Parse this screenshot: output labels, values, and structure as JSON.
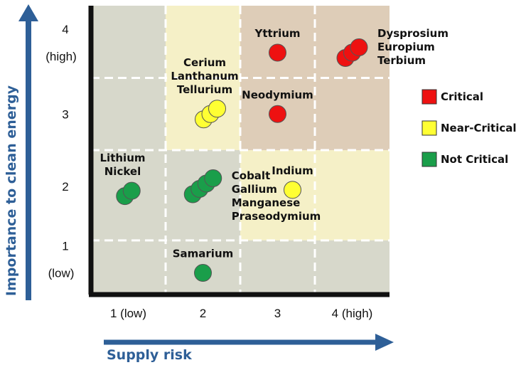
{
  "chart_data": {
    "type": "scatter",
    "xlabel": "Supply risk",
    "ylabel": "Importance to clean energy",
    "xlim": [
      0.5,
      4.5
    ],
    "ylim": [
      0.5,
      4.5
    ],
    "x_ticks": [
      {
        "value": 1,
        "label": "1 (low)"
      },
      {
        "value": 2,
        "label": "2"
      },
      {
        "value": 3,
        "label": "3"
      },
      {
        "value": 4,
        "label": "4 (high)"
      }
    ],
    "y_ticks": [
      {
        "value": 4,
        "lines": [
          "4",
          "(high)"
        ]
      },
      {
        "value": 3,
        "lines": [
          "3"
        ]
      },
      {
        "value": 2,
        "lines": [
          "2"
        ]
      },
      {
        "value": 1,
        "lines": [
          "1",
          "(low)"
        ]
      }
    ],
    "grid": true,
    "legend_position": "right",
    "categories": [
      {
        "name": "Critical",
        "color": "#ee1111"
      },
      {
        "name": "Near-Critical",
        "color": "#ffff33"
      },
      {
        "name": "Not Critical",
        "color": "#1a9e4a"
      }
    ],
    "zone_colors": {
      "gray": "#d7d8cb",
      "yellow": "#f5f0c7",
      "tan": "#decdb8"
    },
    "points": [
      {
        "group": "Dysprosium Europium Terbium",
        "category": "Critical",
        "x": 4.0,
        "y": 3.85,
        "count": 3,
        "labels": [
          "Dysprosium",
          "Europium",
          "Terbium"
        ],
        "label_side": "right"
      },
      {
        "group": "Yttrium",
        "category": "Critical",
        "x": 3.0,
        "y": 3.85,
        "count": 1,
        "labels": [
          "Yttrium"
        ],
        "label_side": "above"
      },
      {
        "group": "Neodymium",
        "category": "Critical",
        "x": 3.0,
        "y": 3.0,
        "count": 1,
        "labels": [
          "Neodymium"
        ],
        "label_side": "above"
      },
      {
        "group": "Cerium Lanthanum Tellurium",
        "category": "Near-Critical",
        "x": 2.1,
        "y": 3.0,
        "count": 3,
        "labels": [
          "Cerium",
          "Lanthanum",
          "Tellurium"
        ],
        "label_side": "above"
      },
      {
        "group": "Indium",
        "category": "Near-Critical",
        "x": 3.2,
        "y": 1.95,
        "count": 1,
        "labels": [
          "Indium"
        ],
        "label_side": "above"
      },
      {
        "group": "Lithium Nickel",
        "category": "Not Critical",
        "x": 1.0,
        "y": 1.9,
        "count": 2,
        "labels": [
          "Lithium",
          "Nickel"
        ],
        "label_side": "above"
      },
      {
        "group": "Cobalt Gallium Manganese Praseodymium",
        "category": "Not Critical",
        "x": 2.0,
        "y": 2.0,
        "count": 4,
        "labels": [
          "Cobalt",
          "Gallium",
          "Manganese",
          "Praseodymium"
        ],
        "label_side": "right"
      },
      {
        "group": "Samarium",
        "category": "Not Critical",
        "x": 2.0,
        "y": 0.8,
        "count": 1,
        "labels": [
          "Samarium"
        ],
        "label_side": "above"
      }
    ]
  }
}
